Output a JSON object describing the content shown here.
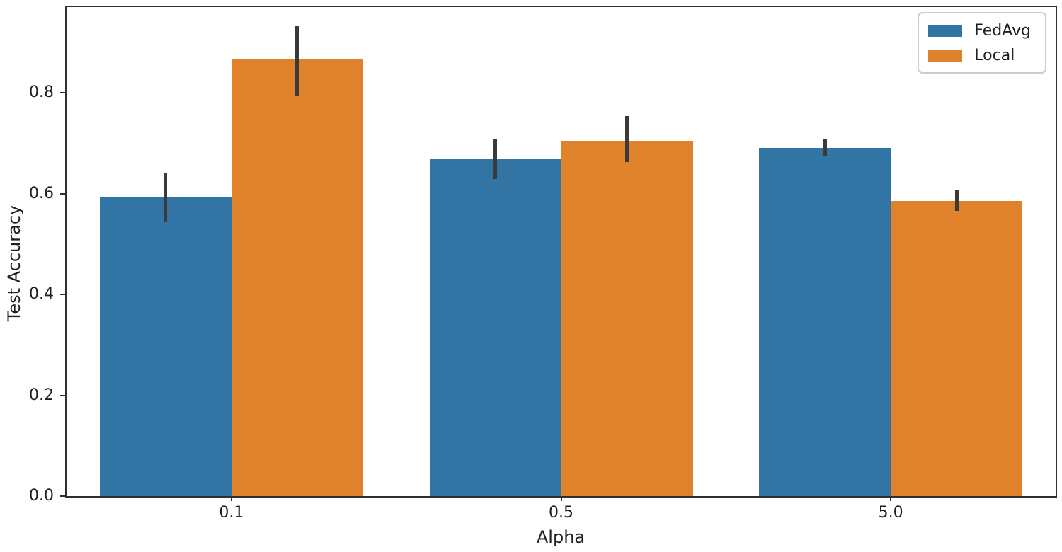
{
  "chart_data": {
    "type": "bar",
    "title": "",
    "xlabel": "Alpha",
    "ylabel": "Test Accuracy",
    "categories": [
      "0.1",
      "0.5",
      "5.0"
    ],
    "series": [
      {
        "name": "FedAvg",
        "color": "#3274a3",
        "values": [
          0.593,
          0.668,
          0.69
        ],
        "err_low": [
          0.545,
          0.629,
          0.674
        ],
        "err_high": [
          0.641,
          0.709,
          0.709
        ]
      },
      {
        "name": "Local",
        "color": "#e0812c",
        "values": [
          0.868,
          0.705,
          0.585
        ],
        "err_low": [
          0.795,
          0.663,
          0.566
        ],
        "err_high": [
          0.932,
          0.754,
          0.608
        ]
      }
    ],
    "ylim": [
      0,
      0.97
    ],
    "yticks": [
      "0.0",
      "0.2",
      "0.4",
      "0.6",
      "0.8"
    ],
    "ytick_values": [
      0.0,
      0.2,
      0.4,
      0.6,
      0.8
    ],
    "grid": false,
    "legend_position": "upper right",
    "error_bar_color": "#3a3a3a",
    "spine_color": "#2e2e2e"
  }
}
